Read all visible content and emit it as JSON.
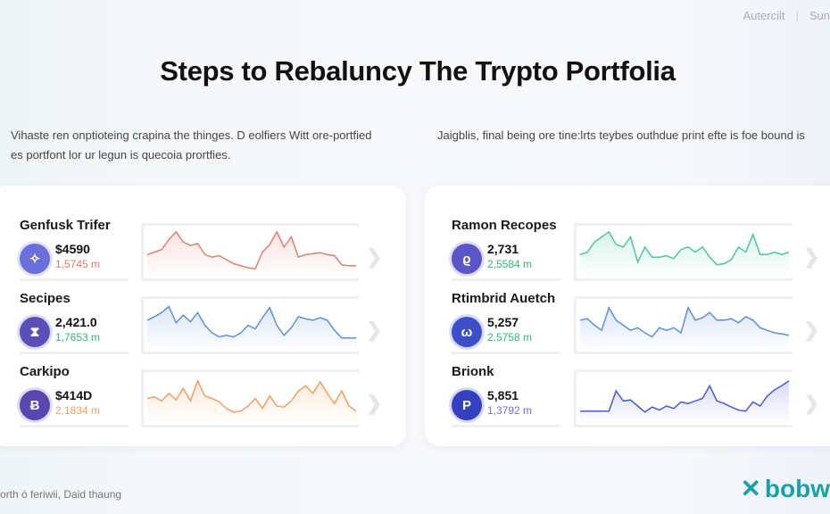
{
  "topnav": {
    "item1": "Autercilt",
    "item2": "Sun"
  },
  "title": "Steps to Rebaluncy The Trypto Portfolia",
  "intro_left": "Vihaste ren onptioteing crapina the thinges. D eolfiers Witt ore-portfied es portfont lor ur legun is quecoia prortfies.",
  "intro_right": "Jaigblis, final being ore tine:lrts teybes outhdue print efte is foe bound is",
  "colors": {
    "red": "#e07a6a",
    "blue": "#5b8fe0",
    "orange": "#f0a060",
    "green": "#3cc28a",
    "indigo": "#4a5ad0"
  },
  "left_assets": [
    {
      "name": "Genfusk Trifer",
      "price": "$4590",
      "change": "1,5745 m",
      "change_color": "#e07a6a",
      "line_color": "#e08070",
      "icon": "network-icon",
      "icon_glyph": "✧",
      "icon_bg": "#6b6fdc",
      "spark": [
        40,
        45,
        50,
        70,
        85,
        65,
        58,
        62,
        40,
        35,
        38,
        30,
        22,
        18,
        14,
        12,
        45,
        60,
        85,
        55,
        75,
        35,
        40,
        42,
        44,
        40,
        38,
        20,
        18,
        18
      ]
    },
    {
      "name": "Secipes",
      "price": "2,421.0",
      "change": "1,7653 m",
      "change_color": "#2fb877",
      "line_color": "#5b8fe0",
      "icon": "hourglass-icon",
      "icon_glyph": "⧗",
      "icon_bg": "#5a4fb8",
      "spark": [
        55,
        62,
        70,
        82,
        50,
        65,
        52,
        70,
        45,
        30,
        22,
        25,
        22,
        30,
        45,
        38,
        60,
        80,
        45,
        25,
        40,
        62,
        58,
        55,
        60,
        55,
        35,
        20,
        20,
        20
      ]
    },
    {
      "name": "Carkipo",
      "price": "$414D",
      "change": "2,1834 m",
      "change_color": "#f0a060",
      "line_color": "#f0a060",
      "icon": "bitcoin-icon",
      "icon_glyph": "Ƀ",
      "icon_bg": "#5a46b0",
      "spark": [
        45,
        48,
        40,
        55,
        42,
        65,
        40,
        80,
        50,
        45,
        38,
        25,
        18,
        20,
        30,
        45,
        25,
        50,
        30,
        28,
        40,
        60,
        70,
        55,
        78,
        55,
        35,
        60,
        30,
        20
      ]
    }
  ],
  "right_assets": [
    {
      "name": "Ramon Recopes",
      "price": "2,731",
      "change": "2,5584 m",
      "change_color": "#2fb877",
      "line_color": "#4cc896",
      "icon": "token-icon",
      "icon_glyph": "ϱ",
      "icon_bg": "#5a55c8",
      "spark": [
        40,
        45,
        65,
        75,
        85,
        60,
        55,
        75,
        25,
        55,
        35,
        35,
        38,
        32,
        50,
        55,
        45,
        55,
        35,
        20,
        22,
        30,
        55,
        45,
        80,
        40,
        40,
        45,
        40,
        45
      ]
    },
    {
      "name": "Rtimbrid Auetch",
      "price": "5,257",
      "change": "2.5758 m",
      "change_color": "#2fb877",
      "line_color": "#5b8fe0",
      "icon": "wave-icon",
      "icon_glyph": "ω",
      "icon_bg": "#3d4ec8",
      "spark": [
        55,
        58,
        45,
        35,
        80,
        55,
        45,
        35,
        40,
        30,
        22,
        40,
        35,
        40,
        30,
        80,
        55,
        60,
        70,
        55,
        55,
        58,
        50,
        62,
        55,
        40,
        35,
        30,
        28,
        25
      ]
    },
    {
      "name": "Brionk",
      "price": "5,851",
      "change": "1,3792 m",
      "change_color": "#7a6ad8",
      "line_color": "#4a5ad0",
      "icon": "p-coin-icon",
      "icon_glyph": "P",
      "icon_bg": "#3540c0",
      "spark": [
        20,
        20,
        20,
        20,
        20,
        60,
        40,
        42,
        30,
        18,
        28,
        22,
        30,
        25,
        38,
        35,
        40,
        45,
        70,
        40,
        35,
        28,
        22,
        20,
        38,
        30,
        50,
        62,
        70,
        80
      ]
    }
  ],
  "footer": "orth ó feriwii, Daid thaung",
  "logo": "bobw"
}
